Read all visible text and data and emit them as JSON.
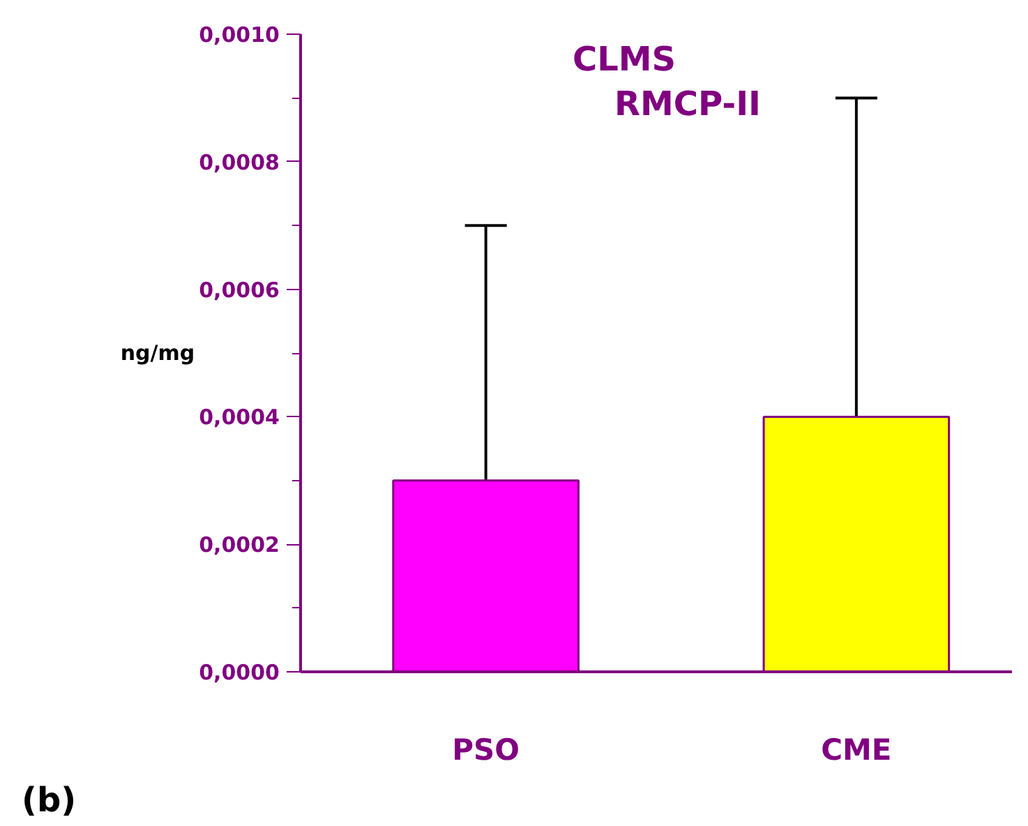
{
  "chart_data": {
    "type": "bar",
    "title": "CLMS\nRMCP-II",
    "ylabel": "ng/mg",
    "categories": [
      "PSO",
      "CME"
    ],
    "values": [
      0.0003,
      0.0004
    ],
    "colors": [
      "#ff00ff",
      "#ffff00"
    ],
    "errors": [
      [
        0.0003,
        0.0007
      ],
      [
        0.0004,
        0.0009
      ]
    ],
    "ylim": [
      0,
      0.001
    ],
    "yticks": [
      {
        "value": 0,
        "label": "0,0000"
      },
      {
        "value": 0.0002,
        "label": "0,0002"
      },
      {
        "value": 0.0004,
        "label": "0,0004"
      },
      {
        "value": 0.0006,
        "label": "0,0006"
      },
      {
        "value": 0.0008,
        "label": "0,0008"
      },
      {
        "value": 0.001,
        "label": "0,0010"
      }
    ],
    "grid": false,
    "annotations": [
      "(b)"
    ]
  }
}
